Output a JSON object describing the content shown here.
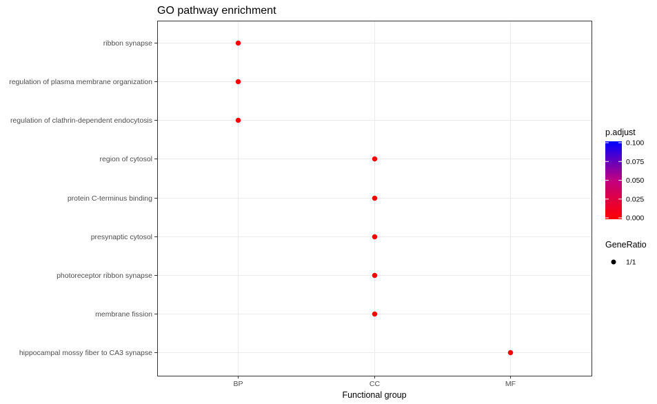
{
  "chart_data": {
    "type": "scatter",
    "title": "GO pathway enrichment",
    "xlabel": "Functional group",
    "ylabel": "",
    "x_categories": [
      "BP",
      "CC",
      "MF"
    ],
    "y_categories": [
      "ribbon synapse",
      "regulation of plasma membrane organization",
      "regulation of clathrin-dependent endocytosis",
      "region of cytosol",
      "protein C-terminus binding",
      "presynaptic cytosol",
      "photoreceptor ribbon synapse",
      "membrane fission",
      "hippocampal mossy fiber to CA3 synapse"
    ],
    "points": [
      {
        "x": "BP",
        "y": "ribbon synapse",
        "p_adjust": 0.0,
        "gene_ratio": "1/1"
      },
      {
        "x": "BP",
        "y": "regulation of plasma membrane organization",
        "p_adjust": 0.0,
        "gene_ratio": "1/1"
      },
      {
        "x": "BP",
        "y": "regulation of clathrin-dependent endocytosis",
        "p_adjust": 0.0,
        "gene_ratio": "1/1"
      },
      {
        "x": "CC",
        "y": "region of cytosol",
        "p_adjust": 0.0,
        "gene_ratio": "1/1"
      },
      {
        "x": "CC",
        "y": "protein C-terminus binding",
        "p_adjust": 0.0,
        "gene_ratio": "1/1"
      },
      {
        "x": "CC",
        "y": "presynaptic cytosol",
        "p_adjust": 0.0,
        "gene_ratio": "1/1"
      },
      {
        "x": "CC",
        "y": "photoreceptor ribbon synapse",
        "p_adjust": 0.0,
        "gene_ratio": "1/1"
      },
      {
        "x": "CC",
        "y": "membrane fission",
        "p_adjust": 0.0,
        "gene_ratio": "1/1"
      },
      {
        "x": "MF",
        "y": "hippocampal mossy fiber to CA3 synapse",
        "p_adjust": 0.0,
        "gene_ratio": "1/1"
      }
    ],
    "color_legend": {
      "title": "p.adjust",
      "min": 0.0,
      "max": 0.1,
      "ticks": [
        "0.100",
        "0.075",
        "0.050",
        "0.025",
        "0.000"
      ],
      "low_color": "#ff0000",
      "high_color": "#0000ff"
    },
    "size_legend": {
      "title": "GeneRatio",
      "entries": [
        "1/1"
      ]
    },
    "grid": true,
    "legend_position": "right"
  }
}
